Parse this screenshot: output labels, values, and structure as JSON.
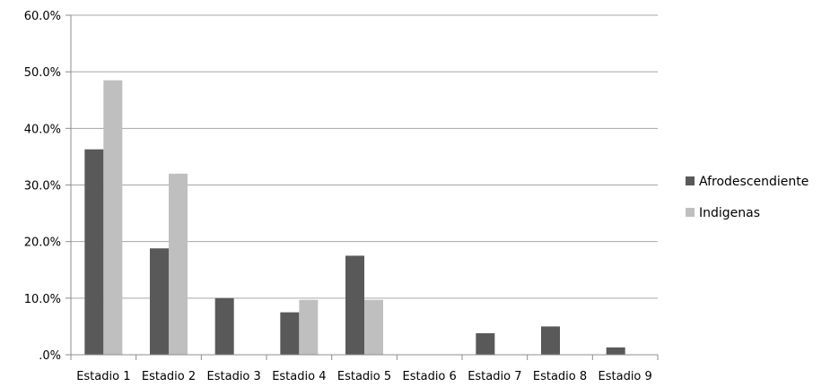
{
  "chart_data": {
    "type": "bar",
    "categories": [
      "Estadio 1",
      "Estadio 2",
      "Estadio 3",
      "Estadio 4",
      "Estadio 5",
      "Estadio 6",
      "Estadio 7",
      "Estadio 8",
      "Estadio 9"
    ],
    "series": [
      {
        "name": "Afrodescendiente",
        "color": "#595959",
        "values": [
          36.3,
          18.8,
          10.0,
          7.5,
          17.5,
          0,
          3.8,
          5.0,
          1.3
        ]
      },
      {
        "name": "Indigenas",
        "color": "#bfbfbf",
        "values": [
          48.5,
          32.0,
          0,
          9.7,
          9.7,
          0,
          0,
          0,
          0
        ]
      }
    ],
    "y_ticks": [
      ".0%",
      "10.0%",
      "20.0%",
      "30.0%",
      "40.0%",
      "50.0%",
      "60.0%"
    ],
    "ylim": [
      0,
      60
    ],
    "grid": true,
    "legend_position": "right",
    "title": "",
    "xlabel": "",
    "ylabel": ""
  }
}
